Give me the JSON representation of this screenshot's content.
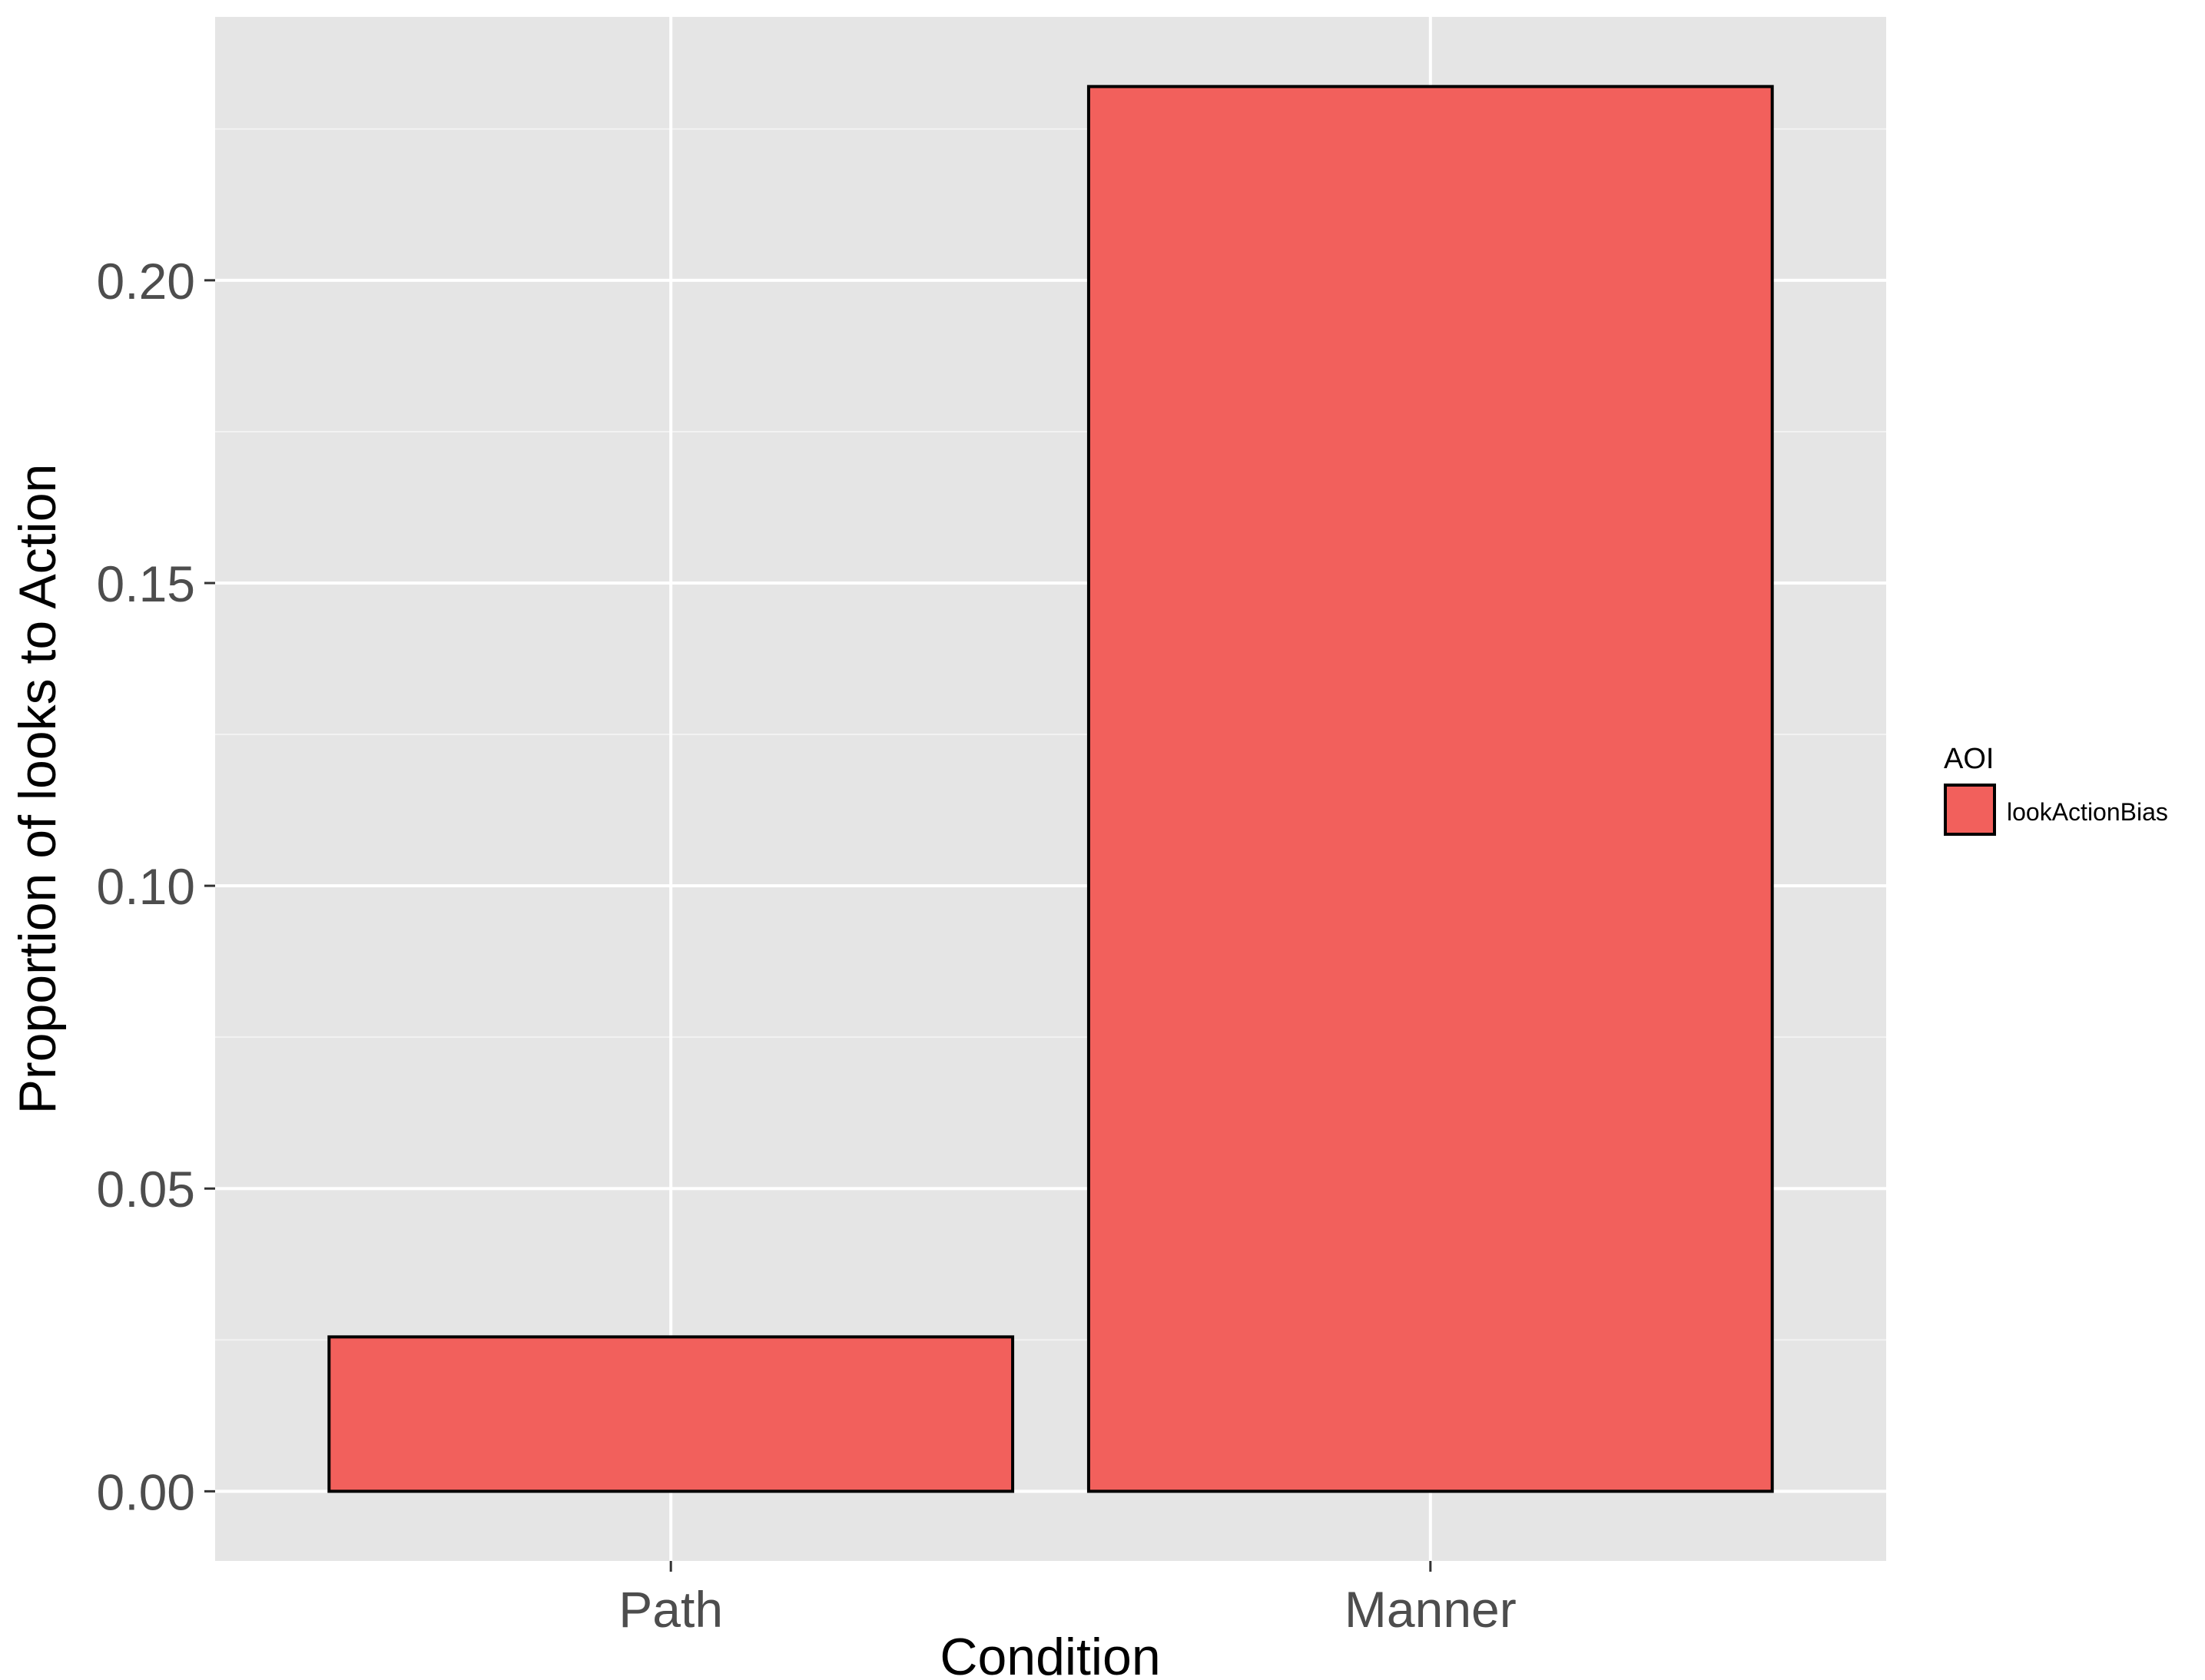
{
  "chart_data": {
    "type": "bar",
    "categories": [
      "Path",
      "Manner"
    ],
    "series": [
      {
        "name": "lookActionBias",
        "values": [
          0.0255,
          0.232
        ]
      }
    ],
    "title": "",
    "xlabel": "Condition",
    "ylabel": "Proportion of looks to Action",
    "ylim": [
      -0.0115,
      0.2435
    ],
    "yticks": [
      0.0,
      0.05,
      0.1,
      0.15,
      0.2
    ],
    "ytick_labels": [
      "0.00",
      "0.05",
      "0.10",
      "0.15",
      "0.20"
    ],
    "grid": true,
    "legend": {
      "title": "AOI",
      "position": "right",
      "entries": [
        "lookActionBias"
      ]
    },
    "colors": {
      "bar_fill": "#F2605C",
      "bar_stroke": "#000000",
      "panel_bg": "#E5E5E5",
      "grid_major": "#FFFFFF",
      "grid_minor": "#F2F2F2"
    }
  }
}
